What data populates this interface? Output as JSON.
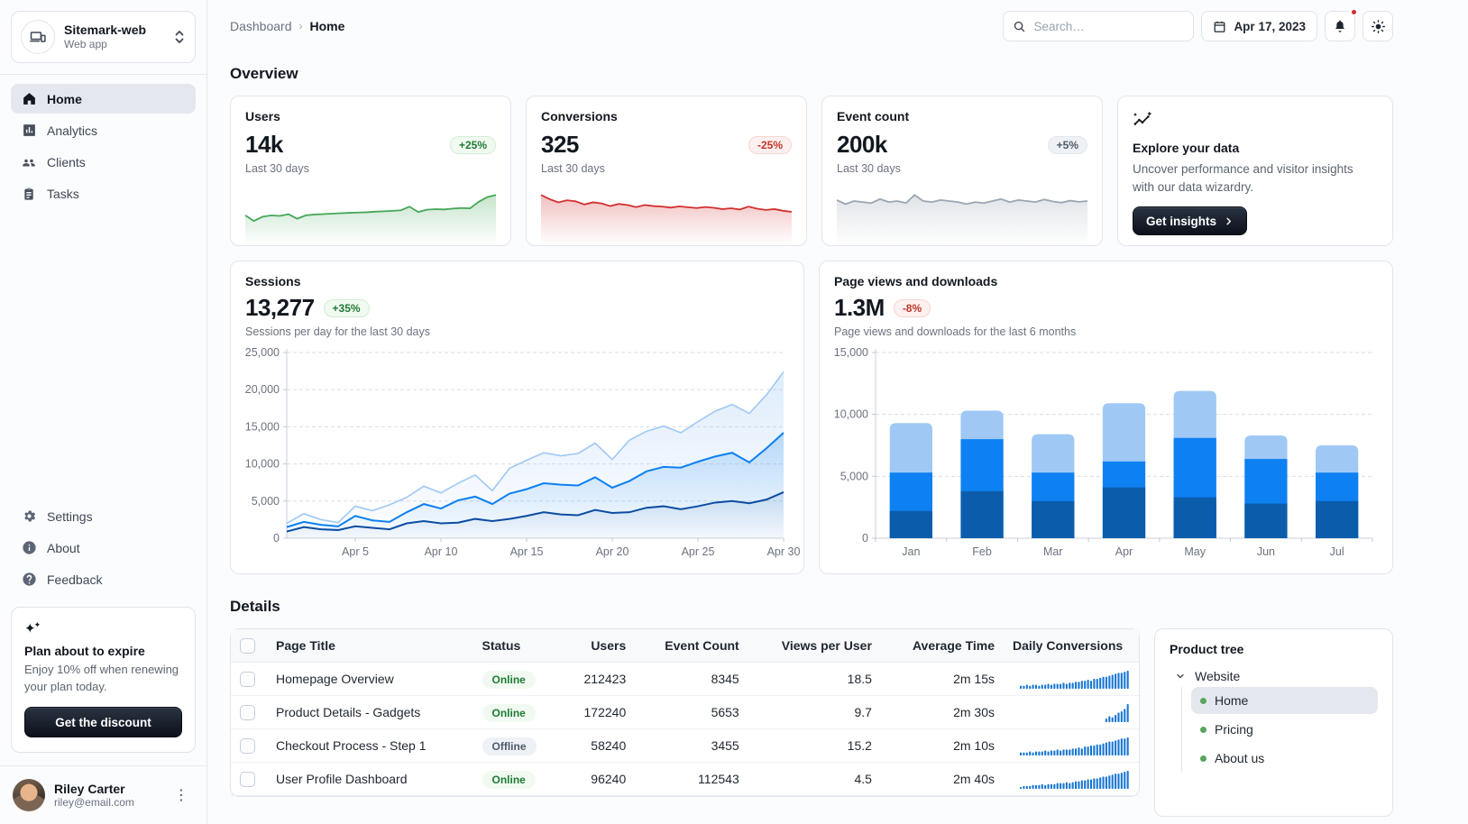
{
  "sidebar": {
    "workspace": {
      "name": "Sitemark-web",
      "type": "Web app"
    },
    "nav_primary": [
      {
        "label": "Home"
      },
      {
        "label": "Analytics"
      },
      {
        "label": "Clients"
      },
      {
        "label": "Tasks"
      }
    ],
    "nav_secondary": [
      {
        "label": "Settings"
      },
      {
        "label": "About"
      },
      {
        "label": "Feedback"
      }
    ],
    "plan_card": {
      "title": "Plan about to expire",
      "body": "Enjoy 10% off when renewing your plan today.",
      "cta": "Get the discount"
    },
    "user": {
      "name": "Riley Carter",
      "email": "riley@email.com"
    }
  },
  "topbar": {
    "breadcrumb": [
      "Dashboard",
      "Home"
    ],
    "search_placeholder": "Search…",
    "date": "Apr 17, 2023"
  },
  "overview": {
    "heading": "Overview",
    "stats": [
      {
        "title": "Users",
        "value": "14k",
        "chip": "+25%",
        "trend": "up",
        "subtitle": "Last 30 days"
      },
      {
        "title": "Conversions",
        "value": "325",
        "chip": "-25%",
        "trend": "down",
        "subtitle": "Last 30 days"
      },
      {
        "title": "Event count",
        "value": "200k",
        "chip": "+5%",
        "trend": "neutral",
        "subtitle": "Last 30 days"
      }
    ],
    "explore": {
      "title": "Explore your data",
      "body": "Uncover performance and visitor insights with our data wizardry.",
      "cta": "Get insights"
    }
  },
  "sessions_card": {
    "title": "Sessions",
    "value": "13,277",
    "chip": "+35%",
    "subtitle": "Sessions per day for the last 30 days"
  },
  "pageviews_card": {
    "title": "Page views and downloads",
    "value": "1.3M",
    "chip": "-8%",
    "subtitle": "Page views and downloads for the last 6 months"
  },
  "details": {
    "heading": "Details",
    "columns": [
      "Page Title",
      "Status",
      "Users",
      "Event Count",
      "Views per User",
      "Average Time",
      "Daily Conversions"
    ],
    "rows": [
      {
        "title": "Homepage Overview",
        "status": "Online",
        "users": "212423",
        "event_count": "8345",
        "views_per_user": "18.5",
        "avg_time": "2m 15s"
      },
      {
        "title": "Product Details - Gadgets",
        "status": "Online",
        "users": "172240",
        "event_count": "5653",
        "views_per_user": "9.7",
        "avg_time": "2m 30s"
      },
      {
        "title": "Checkout Process - Step 1",
        "status": "Offline",
        "users": "58240",
        "event_count": "3455",
        "views_per_user": "15.2",
        "avg_time": "2m 10s"
      },
      {
        "title": "User Profile Dashboard",
        "status": "Online",
        "users": "96240",
        "event_count": "112543",
        "views_per_user": "4.5",
        "avg_time": "2m 40s"
      }
    ]
  },
  "product_tree": {
    "title": "Product tree",
    "root": "Website",
    "items": [
      "Home",
      "Pricing",
      "About us"
    ],
    "selected": "Home"
  },
  "colors": {
    "accent_blue_dark": "#0b5cab",
    "accent_blue": "#0d80f2",
    "accent_blue_light": "#9fc8f5",
    "success_green": "#46a758",
    "error_red": "#d32f2f",
    "neutral_gray": "#9aa6b2",
    "table_spark_blue": "#1976d2"
  },
  "chart_data": [
    {
      "id": "spark-users",
      "type": "sparkline",
      "color": "#46a758",
      "values": [
        200,
        160,
        190,
        200,
        196,
        208,
        176,
        200,
        206,
        209,
        212,
        215,
        218,
        220,
        222,
        226,
        229,
        232,
        236,
        262,
        224,
        240,
        244,
        242,
        248,
        252,
        250,
        296,
        330,
        345
      ]
    },
    {
      "id": "spark-conversions",
      "type": "sparkline",
      "color": "#d32f2f",
      "values": [
        460,
        420,
        390,
        410,
        400,
        370,
        390,
        380,
        355,
        375,
        365,
        345,
        365,
        355,
        350,
        340,
        352,
        344,
        336,
        346,
        338,
        326,
        334,
        322,
        350,
        330,
        318,
        326,
        310,
        300
      ]
    },
    {
      "id": "spark-events",
      "type": "sparkline",
      "color": "#9aa6b2",
      "values": [
        215,
        195,
        210,
        205,
        200,
        220,
        205,
        210,
        200,
        240,
        210,
        205,
        215,
        210,
        205,
        195,
        205,
        200,
        210,
        220,
        205,
        215,
        210,
        205,
        218,
        208,
        202,
        212,
        206,
        210
      ]
    },
    {
      "id": "sessions",
      "type": "area-multi",
      "ylim": [
        0,
        25000
      ],
      "yticks": [
        {
          "v": 0,
          "label": "0"
        },
        {
          "v": 5000,
          "label": "5,000"
        },
        {
          "v": 10000,
          "label": "10,000"
        },
        {
          "v": 15000,
          "label": "15,000"
        },
        {
          "v": 20000,
          "label": "20,000"
        },
        {
          "v": 25000,
          "label": "25,000"
        }
      ],
      "xticks": [
        {
          "i": 4,
          "label": "Apr 5"
        },
        {
          "i": 9,
          "label": "Apr 10"
        },
        {
          "i": 14,
          "label": "Apr 15"
        },
        {
          "i": 19,
          "label": "Apr 20"
        },
        {
          "i": 24,
          "label": "Apr 25"
        },
        {
          "i": 29,
          "label": "Apr 30"
        }
      ],
      "series": [
        {
          "name": "total",
          "color": "#9fc8f5",
          "values": [
            2000,
            3300,
            2500,
            2100,
            4300,
            3700,
            4500,
            5500,
            7000,
            6100,
            7400,
            8500,
            6400,
            9400,
            10500,
            11500,
            11100,
            11400,
            12800,
            10600,
            13200,
            14400,
            15100,
            14200,
            15700,
            17100,
            18000,
            16800,
            19300,
            22400
          ]
        },
        {
          "name": "middle",
          "color": "#0d80f2",
          "values": [
            1500,
            2200,
            1800,
            1600,
            3000,
            2400,
            2200,
            3500,
            4600,
            4000,
            5100,
            5600,
            4600,
            6000,
            6600,
            7400,
            7200,
            7100,
            8200,
            6800,
            7700,
            9000,
            9600,
            9500,
            10300,
            11000,
            11500,
            10200,
            12100,
            14200
          ]
        },
        {
          "name": "bottom",
          "color": "#0b4da1",
          "values": [
            900,
            1500,
            1200,
            1100,
            1600,
            1400,
            1200,
            2000,
            2300,
            2000,
            2100,
            2600,
            2300,
            2600,
            3000,
            3500,
            3200,
            3100,
            3800,
            3400,
            3500,
            4100,
            4300,
            3900,
            4300,
            4800,
            5000,
            4700,
            5200,
            6200
          ]
        }
      ]
    },
    {
      "id": "pageviews",
      "type": "stacked-bar",
      "categories": [
        "Jan",
        "Feb",
        "Mar",
        "Apr",
        "May",
        "Jun",
        "Jul"
      ],
      "ylim": [
        0,
        15000
      ],
      "yticks": [
        {
          "v": 0,
          "label": "0"
        },
        {
          "v": 5000,
          "label": "5,000"
        },
        {
          "v": 10000,
          "label": "10,000"
        },
        {
          "v": 15000,
          "label": "15,000"
        }
      ],
      "series": [
        {
          "name": "bottom",
          "color": "#0b5cab",
          "values": [
            2200,
            3800,
            3000,
            4100,
            3300,
            2800,
            3000
          ]
        },
        {
          "name": "middle",
          "color": "#0d80f2",
          "values": [
            3100,
            4200,
            2300,
            2100,
            4800,
            3600,
            2300
          ]
        },
        {
          "name": "top",
          "color": "#9fc8f5",
          "values": [
            4000,
            2300,
            3100,
            4700,
            3800,
            1900,
            2200
          ]
        }
      ]
    },
    {
      "id": "row-spark-0",
      "type": "bars",
      "color": "#1976d2",
      "values": [
        3,
        3,
        4,
        3,
        4,
        4,
        3,
        4,
        4,
        5,
        4,
        5,
        5,
        5,
        6,
        5,
        6,
        6,
        7,
        7,
        8,
        8,
        9,
        8,
        10,
        10,
        11,
        12,
        12,
        13,
        14,
        15,
        16,
        16,
        17,
        18
      ]
    },
    {
      "id": "row-spark-1",
      "type": "bars",
      "color": "#1976d2",
      "values": [
        0,
        0,
        0,
        0,
        0,
        0,
        0,
        0,
        0,
        0,
        0,
        0,
        0,
        0,
        0,
        0,
        0,
        0,
        0,
        0,
        0,
        0,
        0,
        0,
        0,
        0,
        0,
        0,
        3,
        5,
        4,
        6,
        8,
        9,
        11,
        15
      ]
    },
    {
      "id": "row-spark-2",
      "type": "bars",
      "color": "#1976d2",
      "values": [
        3,
        3,
        3,
        4,
        3,
        4,
        4,
        4,
        5,
        4,
        5,
        5,
        6,
        5,
        6,
        6,
        6,
        7,
        7,
        8,
        7,
        9,
        9,
        10,
        10,
        11,
        11,
        12,
        13,
        14,
        14,
        15,
        16,
        17,
        17,
        18
      ]
    },
    {
      "id": "row-spark-3",
      "type": "bars",
      "color": "#1976d2",
      "values": [
        2,
        3,
        3,
        3,
        4,
        4,
        4,
        5,
        4,
        5,
        5,
        5,
        6,
        6,
        6,
        7,
        6,
        7,
        8,
        8,
        9,
        9,
        10,
        10,
        11,
        11,
        12,
        13,
        13,
        14,
        15,
        16,
        16,
        17,
        18,
        19
      ]
    }
  ]
}
